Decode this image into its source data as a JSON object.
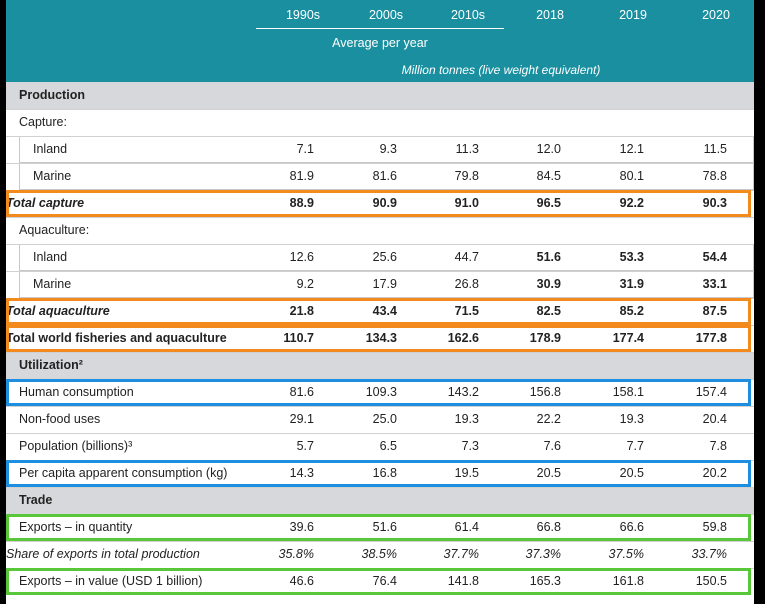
{
  "header": {
    "years": [
      "1990s",
      "2000s",
      "2010s",
      "2018",
      "2019",
      "2020"
    ],
    "avg_label": "Average per year",
    "unit_label": "Million tonnes (live weight equivalent)"
  },
  "rows": [
    {
      "label": "Production",
      "kind": "sec"
    },
    {
      "label": "Capture:",
      "kind": "plain"
    },
    {
      "label": "Inland",
      "kind": "ind",
      "values": [
        "7.1",
        "9.3",
        "11.3",
        "12.0",
        "12.1",
        "11.5"
      ]
    },
    {
      "label": "Marine",
      "kind": "ind",
      "values": [
        "81.9",
        "81.6",
        "79.8",
        "84.5",
        "80.1",
        "78.8"
      ]
    },
    {
      "label": "Total capture",
      "kind": "boldital",
      "values": [
        "88.9",
        "90.9",
        "91.0",
        "96.5",
        "92.2",
        "90.3"
      ]
    },
    {
      "label": "Aquaculture:",
      "kind": "plain"
    },
    {
      "label": "Inland",
      "kind": "ind",
      "values": [
        "12.6",
        "25.6",
        "44.7",
        "51.6",
        "53.3",
        "54.4"
      ],
      "bold_from": 3
    },
    {
      "label": "Marine",
      "kind": "ind",
      "values": [
        "9.2",
        "17.9",
        "26.8",
        "30.9",
        "31.9",
        "33.1"
      ],
      "bold_from": 3
    },
    {
      "label": "Total aquaculture",
      "kind": "boldital",
      "values": [
        "21.8",
        "43.4",
        "71.5",
        "82.5",
        "85.2",
        "87.5"
      ]
    },
    {
      "label": "Total world fisheries and aquaculture",
      "kind": "bold",
      "values": [
        "110.7",
        "134.3",
        "162.6",
        "178.9",
        "177.4",
        "177.8"
      ]
    },
    {
      "label": "Utilization²",
      "kind": "sec"
    },
    {
      "label": "Human consumption",
      "kind": "plain",
      "values": [
        "81.6",
        "109.3",
        "143.2",
        "156.8",
        "158.1",
        "157.4"
      ]
    },
    {
      "label": "Non-food uses",
      "kind": "plain",
      "values": [
        "29.1",
        "25.0",
        "19.3",
        "22.2",
        "19.3",
        "20.4"
      ]
    },
    {
      "label": "Population (billions)³",
      "kind": "plain",
      "values": [
        "5.7",
        "6.5",
        "7.3",
        "7.6",
        "7.7",
        "7.8"
      ]
    },
    {
      "label": "Per capita apparent consumption (kg)",
      "kind": "plain",
      "values": [
        "14.3",
        "16.8",
        "19.5",
        "20.5",
        "20.5",
        "20.2"
      ]
    },
    {
      "label": "Trade",
      "kind": "sec"
    },
    {
      "label": "Exports – in quantity",
      "kind": "plain",
      "values": [
        "39.6",
        "51.6",
        "61.4",
        "66.8",
        "66.6",
        "59.8"
      ]
    },
    {
      "label": "Share of exports in total production",
      "kind": "ital",
      "values": [
        "35.8%",
        "38.5%",
        "37.7%",
        "37.3%",
        "37.5%",
        "33.7%"
      ]
    },
    {
      "label": "Exports – in value (USD 1 billion)",
      "kind": "plain",
      "values": [
        "46.6",
        "76.4",
        "141.8",
        "165.3",
        "161.8",
        "150.5"
      ]
    }
  ],
  "colors": {
    "header_bg": "#1a8fa0",
    "section_bg": "#d6d8db",
    "orange": "#f28a1e",
    "blue": "#1e8fe0",
    "green": "#58c83a"
  }
}
